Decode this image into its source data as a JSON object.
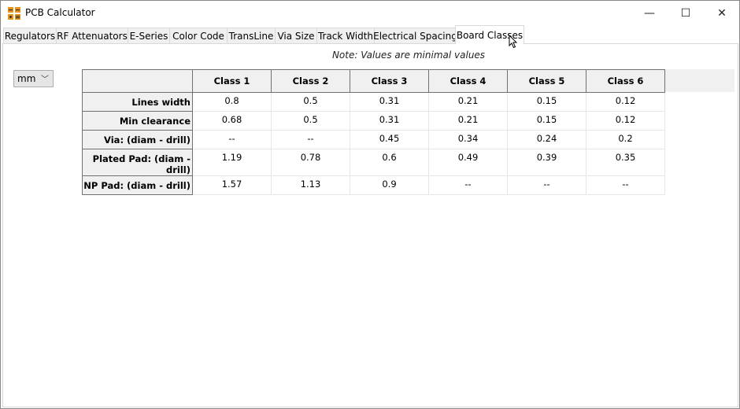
{
  "window": {
    "title": "PCB Calculator",
    "icon": "pcb-calculator-icon",
    "minimize": "—",
    "maximize": "☐",
    "close": "✕"
  },
  "tabs": [
    {
      "label": "Regulators"
    },
    {
      "label": "RF Attenuators"
    },
    {
      "label": "E-Series"
    },
    {
      "label": "Color Code"
    },
    {
      "label": "TransLine"
    },
    {
      "label": "Via Size"
    },
    {
      "label": "Track Width"
    },
    {
      "label": "Electrical Spacing"
    },
    {
      "label": "Board Classes",
      "selected": true
    }
  ],
  "board_classes": {
    "note": "Note: Values are minimal values",
    "unit": "mm",
    "columns": [
      "Class 1",
      "Class 2",
      "Class 3",
      "Class 4",
      "Class 5",
      "Class 6"
    ],
    "rows": [
      {
        "label": "Lines width",
        "values": [
          "0.8",
          "0.5",
          "0.31",
          "0.21",
          "0.15",
          "0.12"
        ]
      },
      {
        "label": "Min clearance",
        "values": [
          "0.68",
          "0.5",
          "0.31",
          "0.21",
          "0.15",
          "0.12"
        ]
      },
      {
        "label": "Via: (diam - drill)",
        "values": [
          "--",
          "--",
          "0.45",
          "0.34",
          "0.24",
          "0.2"
        ]
      },
      {
        "label": "Plated Pad: (diam - drill)",
        "values": [
          "1.19",
          "0.78",
          "0.6",
          "0.49",
          "0.39",
          "0.35"
        ]
      },
      {
        "label": "NP Pad: (diam - drill)",
        "values": [
          "1.57",
          "1.13",
          "0.9",
          "--",
          "--",
          "--"
        ]
      }
    ]
  }
}
